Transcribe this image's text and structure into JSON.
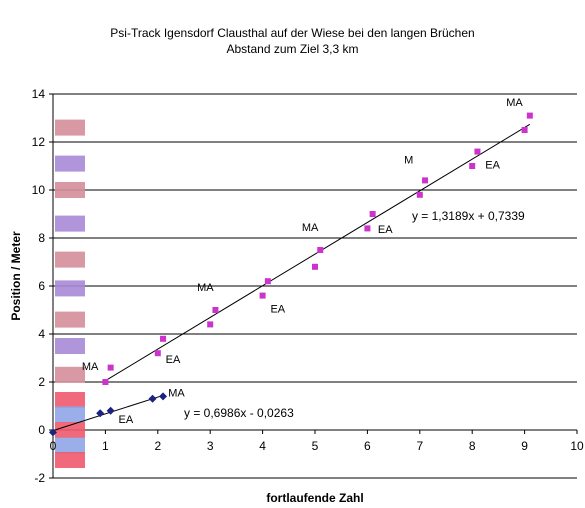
{
  "chart_data": {
    "type": "scatter",
    "title": "Psi-Track Igensdorf Clausthal  auf der Wiese bei den langen Brüchen",
    "subtitle": "Abstand zum Ziel 3,3 km",
    "xlabel": "fortlaufende Zahl",
    "ylabel": "Position / Meter",
    "xlim": [
      0,
      10
    ],
    "ylim": [
      -2,
      14
    ],
    "x_ticks": [
      "0",
      "1",
      "2",
      "3",
      "4",
      "5",
      "6",
      "7",
      "8",
      "9",
      "10"
    ],
    "y_ticks": [
      "-2",
      "0",
      "2",
      "4",
      "6",
      "8",
      "10",
      "12",
      "14"
    ],
    "grid": "horizontal",
    "series": [
      {
        "color": "#cc33cc",
        "marker": "square",
        "points": [
          [
            1.0,
            2.0
          ],
          [
            1.1,
            2.6
          ],
          [
            2.0,
            3.2
          ],
          [
            2.1,
            3.8
          ],
          [
            3.0,
            4.4
          ],
          [
            3.1,
            5.0
          ],
          [
            4.0,
            5.6
          ],
          [
            4.1,
            6.2
          ],
          [
            5.0,
            6.8
          ],
          [
            5.1,
            7.5
          ],
          [
            6.0,
            8.4
          ],
          [
            6.1,
            9.0
          ],
          [
            7.0,
            9.8
          ],
          [
            7.1,
            10.4
          ],
          [
            8.0,
            11.0
          ],
          [
            8.1,
            11.6
          ],
          [
            9.0,
            12.5
          ],
          [
            9.1,
            13.1
          ]
        ],
        "trendline": {
          "slope": 1.3189,
          "intercept": 0.7339,
          "x_range": [
            1.0,
            9.1
          ],
          "equation": "y = 1,3189x + 0,7339"
        }
      },
      {
        "color": "#1a237e",
        "marker": "diamond",
        "points": [
          [
            0.0,
            -0.1
          ],
          [
            0.9,
            0.7
          ],
          [
            1.1,
            0.8
          ],
          [
            1.9,
            1.3
          ],
          [
            2.1,
            1.4
          ]
        ],
        "trendline": {
          "slope": 0.6986,
          "intercept": -0.0263,
          "x_range": [
            0.0,
            2.1
          ],
          "equation": "y = 0,6986x - 0,0263"
        }
      }
    ],
    "annotations": [
      {
        "text": "MA",
        "x": 0.55,
        "y": 2.5
      },
      {
        "text": "EA",
        "x": 2.15,
        "y": 2.8
      },
      {
        "text": "MA",
        "x": 2.75,
        "y": 5.8
      },
      {
        "text": "EA",
        "x": 4.15,
        "y": 4.9
      },
      {
        "text": "MA",
        "x": 4.75,
        "y": 8.3
      },
      {
        "text": "EA",
        "x": 6.2,
        "y": 8.2
      },
      {
        "text": "M",
        "x": 6.7,
        "y": 11.1
      },
      {
        "text": "EA",
        "x": 8.25,
        "y": 10.9
      },
      {
        "text": "MA",
        "x": 8.65,
        "y": 13.5
      },
      {
        "text": "MA",
        "x": 2.2,
        "y": 1.4
      },
      {
        "text": "EA",
        "x": 1.25,
        "y": 0.3
      }
    ],
    "equation_labels": [
      {
        "text": "y = 1,3189x + 0,7339",
        "x": 6.85,
        "y": 8.75
      },
      {
        "text": "y = 0,6986x - 0,0263",
        "x": 2.5,
        "y": 0.55
      }
    ],
    "side_bars": [
      {
        "y": 12.6,
        "color": "#d48e9a"
      },
      {
        "y": 11.1,
        "color": "#a78ad6"
      },
      {
        "y": 10.0,
        "color": "#d48e9a"
      },
      {
        "y": 8.6,
        "color": "#a78ad6"
      },
      {
        "y": 7.1,
        "color": "#d48e9a"
      },
      {
        "y": 5.9,
        "color": "#a78ad6"
      },
      {
        "y": 4.6,
        "color": "#d48e9a"
      },
      {
        "y": 3.5,
        "color": "#a78ad6"
      },
      {
        "y": 2.3,
        "color": "#d48e9a"
      },
      {
        "y": 1.25,
        "color": "#ee5a6e"
      },
      {
        "y": 0.65,
        "color": "#8fa6e8"
      },
      {
        "y": 0.0,
        "color": "#ee5a6e"
      },
      {
        "y": -0.65,
        "color": "#8fa6e8"
      },
      {
        "y": -1.25,
        "color": "#ee5a6e"
      }
    ]
  }
}
